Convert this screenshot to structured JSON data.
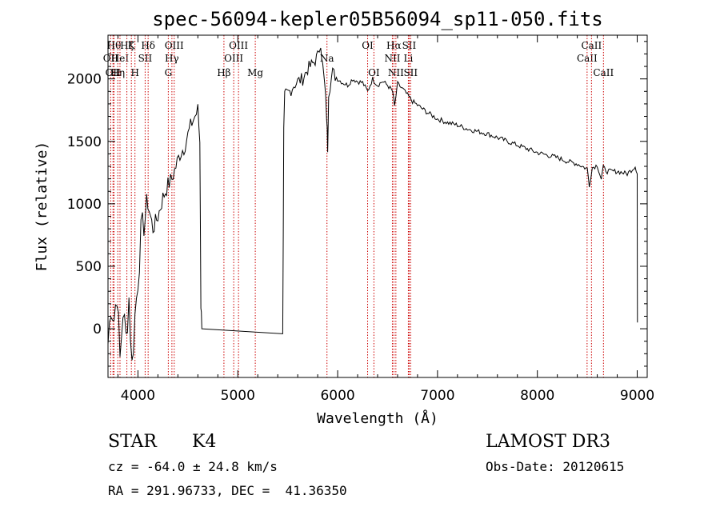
{
  "chart_data": {
    "type": "line",
    "title": "spec-56094-kepler05B56094_sp11-050.fits",
    "xlabel": "Wavelength (Å)",
    "ylabel": "Flux (relative)",
    "xlim": [
      3700,
      9100
    ],
    "ylim": [
      -390,
      2350
    ],
    "xticks": [
      4000,
      5000,
      6000,
      7000,
      8000,
      9000
    ],
    "yticks": [
      0,
      500,
      1000,
      1500,
      2000
    ],
    "series": [
      {
        "name": "flux",
        "x": [
          3700,
          3730,
          3760,
          3790,
          3820,
          3850,
          3880,
          3910,
          3940,
          3970,
          4000,
          4030,
          4060,
          4100,
          4150,
          4200,
          4250,
          4300,
          4340,
          4380,
          4420,
          4460,
          4500,
          4540,
          4570,
          4600,
          4620,
          4630,
          4640,
          5450,
          5460,
          5470,
          5480,
          5520,
          5560,
          5600,
          5650,
          5700,
          5750,
          5800,
          5830,
          5850,
          5870,
          5890,
          5900,
          5910,
          5950,
          6000,
          6050,
          6100,
          6150,
          6200,
          6250,
          6300,
          6350,
          6400,
          6450,
          6500,
          6550,
          6570,
          6600,
          6650,
          6700,
          6750,
          6800,
          6900,
          7000,
          7100,
          7200,
          7300,
          7400,
          7500,
          7600,
          7700,
          7800,
          7900,
          8000,
          8100,
          8200,
          8300,
          8400,
          8450,
          8500,
          8520,
          8550,
          8600,
          8640,
          8660,
          8700,
          8800,
          8900,
          8980,
          9000,
          9002
        ],
        "y": [
          -120,
          200,
          80,
          300,
          -250,
          150,
          -80,
          250,
          -300,
          100,
          400,
          750,
          850,
          1000,
          800,
          900,
          1050,
          1150,
          1200,
          1300,
          1400,
          1450,
          1550,
          1650,
          1700,
          1750,
          1500,
          200,
          0,
          0,
          1580,
          1850,
          1880,
          1900,
          1950,
          1980,
          2000,
          2080,
          2120,
          2180,
          2300,
          2100,
          1950,
          1700,
          1450,
          1900,
          2050,
          2000,
          1970,
          1950,
          2000,
          1980,
          1970,
          1900,
          2000,
          1950,
          1980,
          1950,
          1900,
          1780,
          1960,
          1920,
          1870,
          1820,
          1790,
          1730,
          1680,
          1650,
          1630,
          1600,
          1580,
          1560,
          1530,
          1500,
          1470,
          1440,
          1410,
          1390,
          1370,
          1340,
          1320,
          1300,
          1280,
          1150,
          1290,
          1310,
          1200,
          1290,
          1260,
          1260,
          1240,
          1300,
          1250,
          50
        ]
      }
    ],
    "lines": [
      {
        "w": 3727,
        "label": "OII",
        "row": 2
      },
      {
        "w": 3750,
        "label": "OII",
        "row": 3
      },
      {
        "w": 3760,
        "label": "Hθ",
        "row": 1
      },
      {
        "w": 3798,
        "label": "Hη",
        "row": 3
      },
      {
        "w": 3820,
        "label": "HeI",
        "row": 2
      },
      {
        "w": 3889,
        "label": "Hζ",
        "row": 1
      },
      {
        "w": 3934,
        "label": "K",
        "row": 1
      },
      {
        "w": 3970,
        "label": "H",
        "row": 3
      },
      {
        "w": 4072,
        "label": "SII",
        "row": 2
      },
      {
        "w": 4102,
        "label": "Hδ",
        "row": 1
      },
      {
        "w": 4304,
        "label": "G",
        "row": 3
      },
      {
        "w": 4340,
        "label": "Hγ",
        "row": 2
      },
      {
        "w": 4363,
        "label": "OIII",
        "row": 1
      },
      {
        "w": 4861,
        "label": "Hβ",
        "row": 3
      },
      {
        "w": 4959,
        "label": "OIII",
        "row": 2
      },
      {
        "w": 5007,
        "label": "OIII",
        "row": 1
      },
      {
        "w": 5175,
        "label": "Mg",
        "row": 3
      },
      {
        "w": 5893,
        "label": "Na",
        "row": 2
      },
      {
        "w": 6300,
        "label": "OI",
        "row": 1
      },
      {
        "w": 6363,
        "label": "OI",
        "row": 3
      },
      {
        "w": 6548,
        "label": "NII",
        "row": 2
      },
      {
        "w": 6563,
        "label": "Hα",
        "row": 1
      },
      {
        "w": 6583,
        "label": "NII",
        "row": 3
      },
      {
        "w": 6708,
        "label": "Li",
        "row": 2
      },
      {
        "w": 6716,
        "label": "SII",
        "row": 1
      },
      {
        "w": 6731,
        "label": "SII",
        "row": 3
      },
      {
        "w": 8498,
        "label": "CaII",
        "row": 2
      },
      {
        "w": 8542,
        "label": "CaII",
        "row": 1
      },
      {
        "w": 8662,
        "label": "CaII",
        "row": 3
      }
    ]
  },
  "info": {
    "class_label": "STAR",
    "subclass": "K4",
    "survey": "LAMOST DR3",
    "cz": "cz = -64.0 ± 24.8 km/s",
    "obs_date": "Obs-Date: 20120615",
    "coords": "RA = 291.96733, DEC =  41.36350"
  }
}
